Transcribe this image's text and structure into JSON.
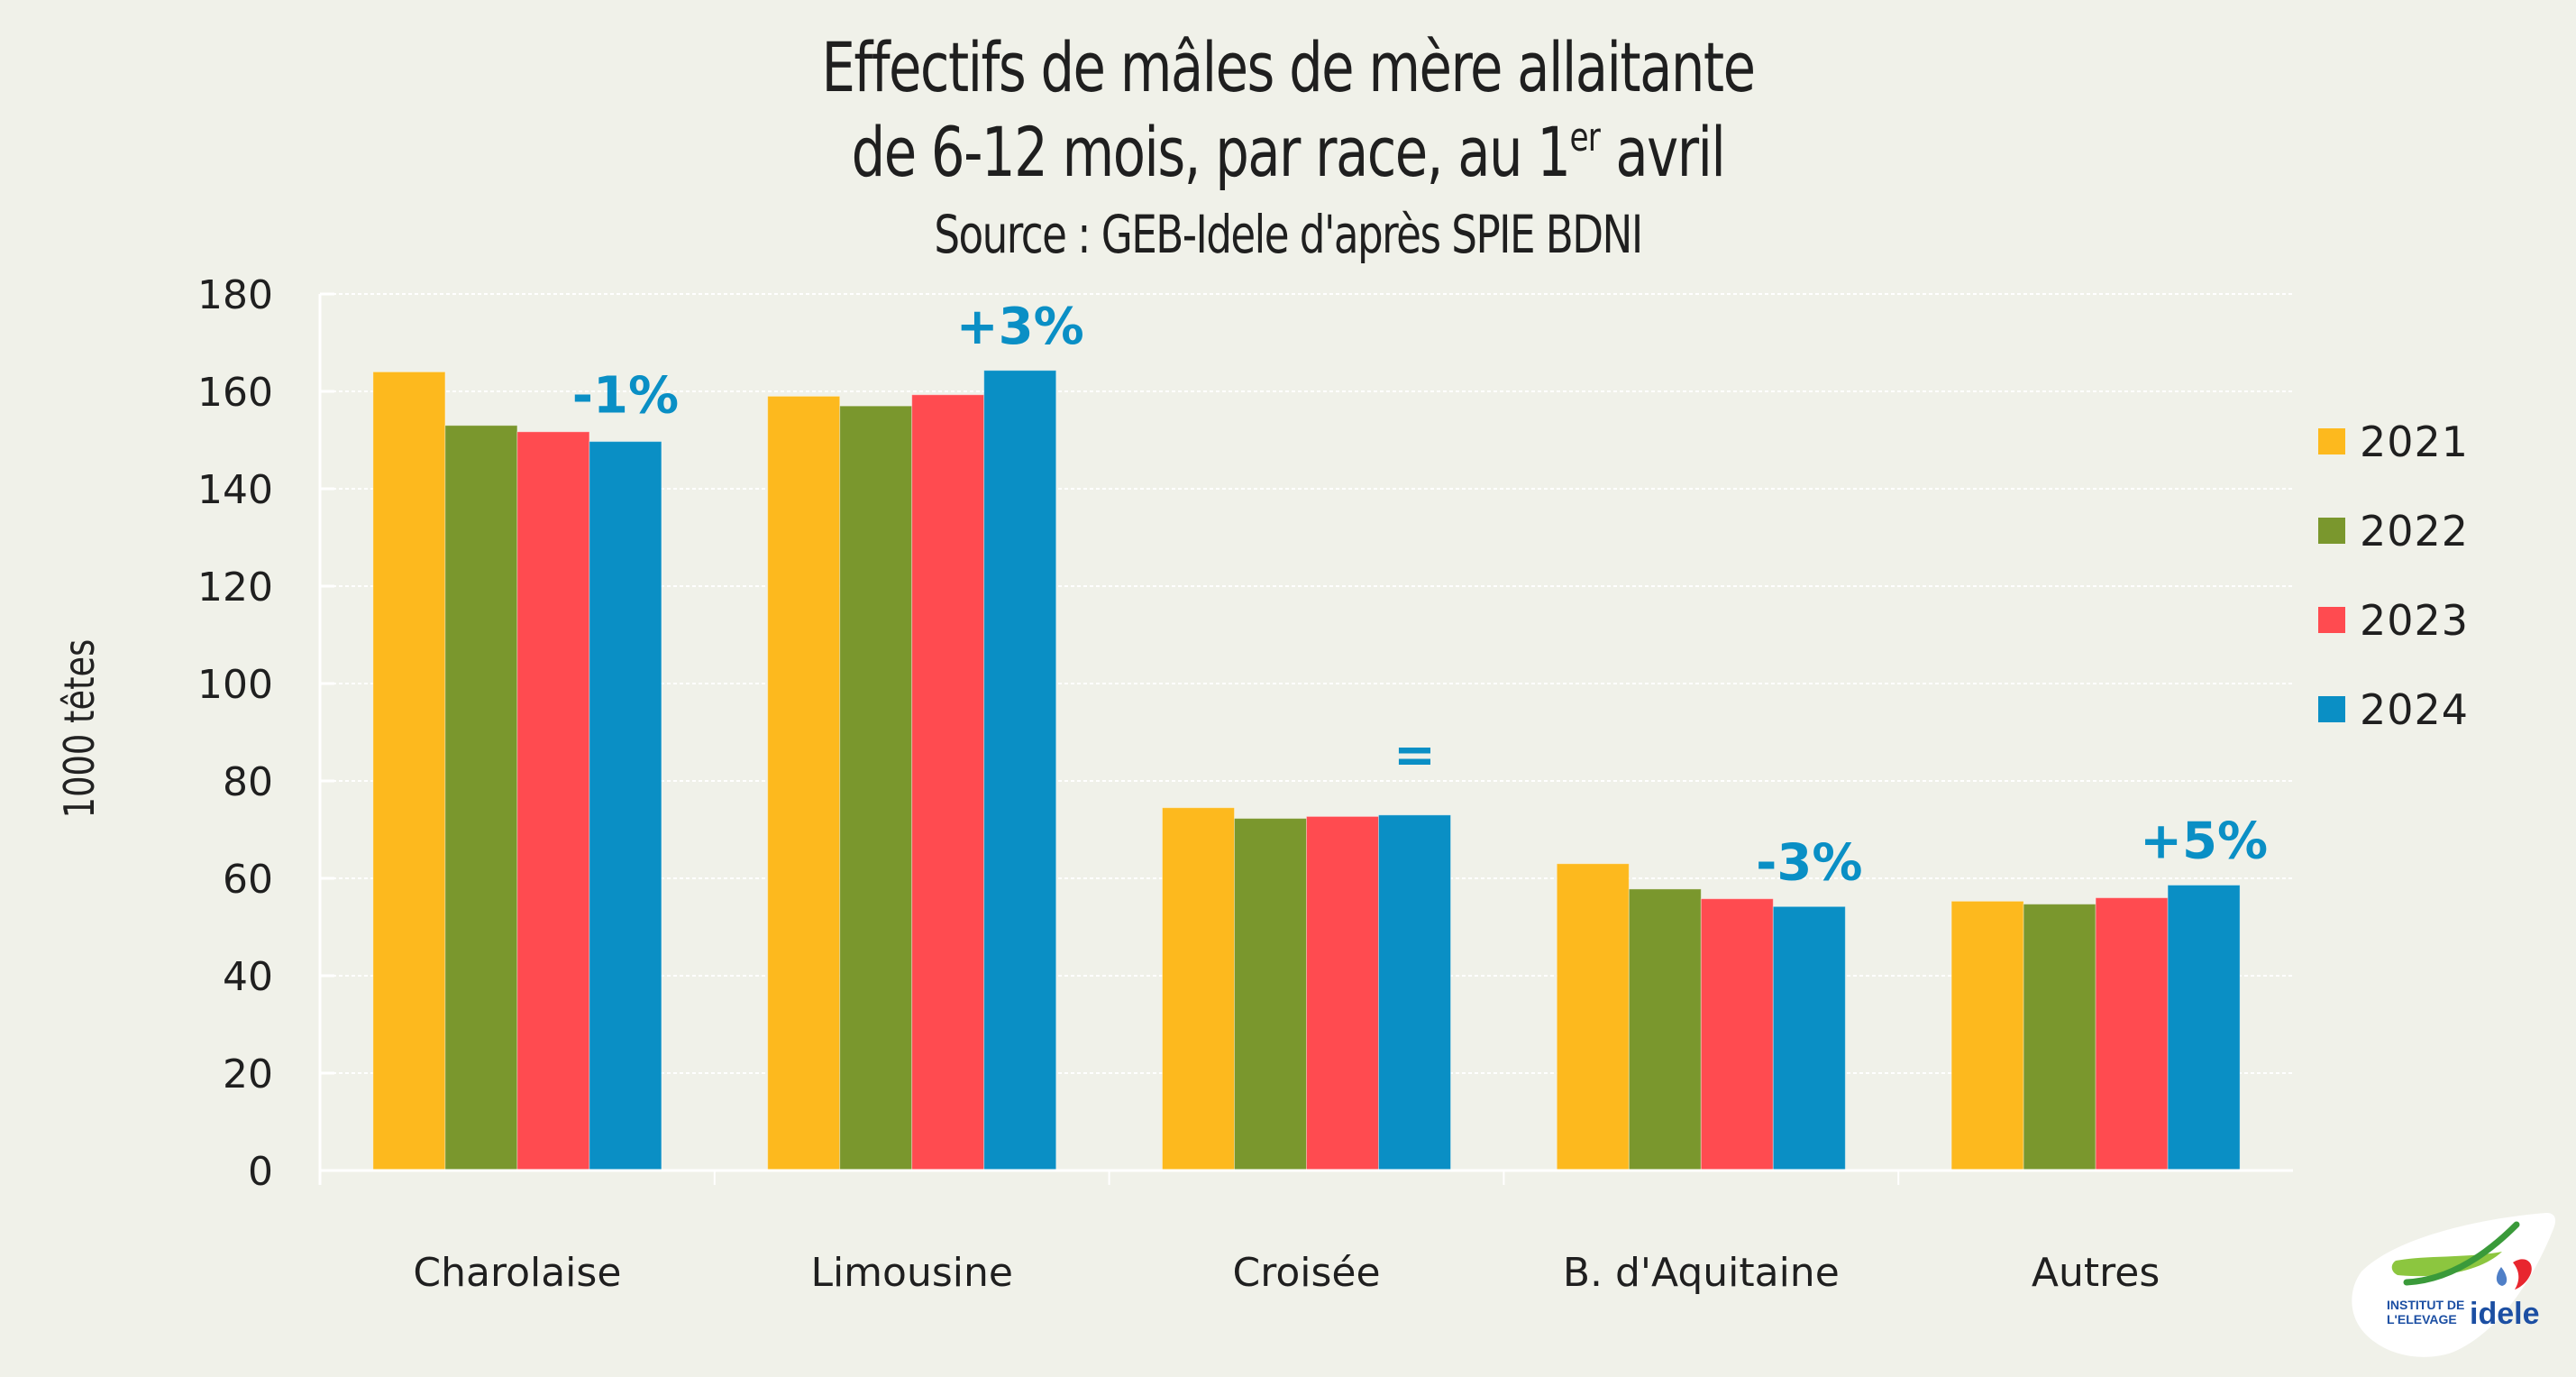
{
  "header": {
    "title_line1": "Effectifs de mâles de mère allaitante",
    "title_line2_main": "de 6-12 mois, par race, au 1",
    "title_line2_sup": "er",
    "title_line2_end": " avril",
    "subtitle": "Source : GEB-Idele d'après SPIE BDNI"
  },
  "logo": {
    "line1": "INSTITUT DE",
    "line2": "L'ELEVAGE",
    "brand": "idele"
  },
  "chart_data": {
    "type": "bar",
    "title": "Effectifs de mâles de mère allaitante de 6-12 mois, par race, au 1er avril",
    "subtitle": "Source : GEB-Idele d'après SPIE BDNI",
    "xlabel": "",
    "ylabel": "1000 têtes",
    "ylim": [
      0,
      180
    ],
    "yticks": [
      0,
      20,
      40,
      60,
      80,
      100,
      120,
      140,
      160,
      180
    ],
    "grid": true,
    "legend_position": "right",
    "categories": [
      "Charolaise",
      "Limousine",
      "Croisée",
      "B. d'Aquitaine",
      "Autres"
    ],
    "series": [
      {
        "name": "2021",
        "color": "#fdb91e",
        "values": [
          164,
          159,
          74.5,
          63,
          55.3
        ]
      },
      {
        "name": "2022",
        "color": "#7a972d",
        "values": [
          153,
          157,
          72.3,
          57.8,
          54.7
        ]
      },
      {
        "name": "2023",
        "color": "#ff4b50",
        "values": [
          151.7,
          159.3,
          72.7,
          55.8,
          56
        ]
      },
      {
        "name": "2024",
        "color": "#0a8fc5",
        "values": [
          149.7,
          164.3,
          73,
          54.2,
          58.6
        ]
      }
    ],
    "annotations": [
      "-1%",
      "+3%",
      "=",
      "-3%",
      "+5%"
    ],
    "annotation_color": "#0a8fc5"
  }
}
